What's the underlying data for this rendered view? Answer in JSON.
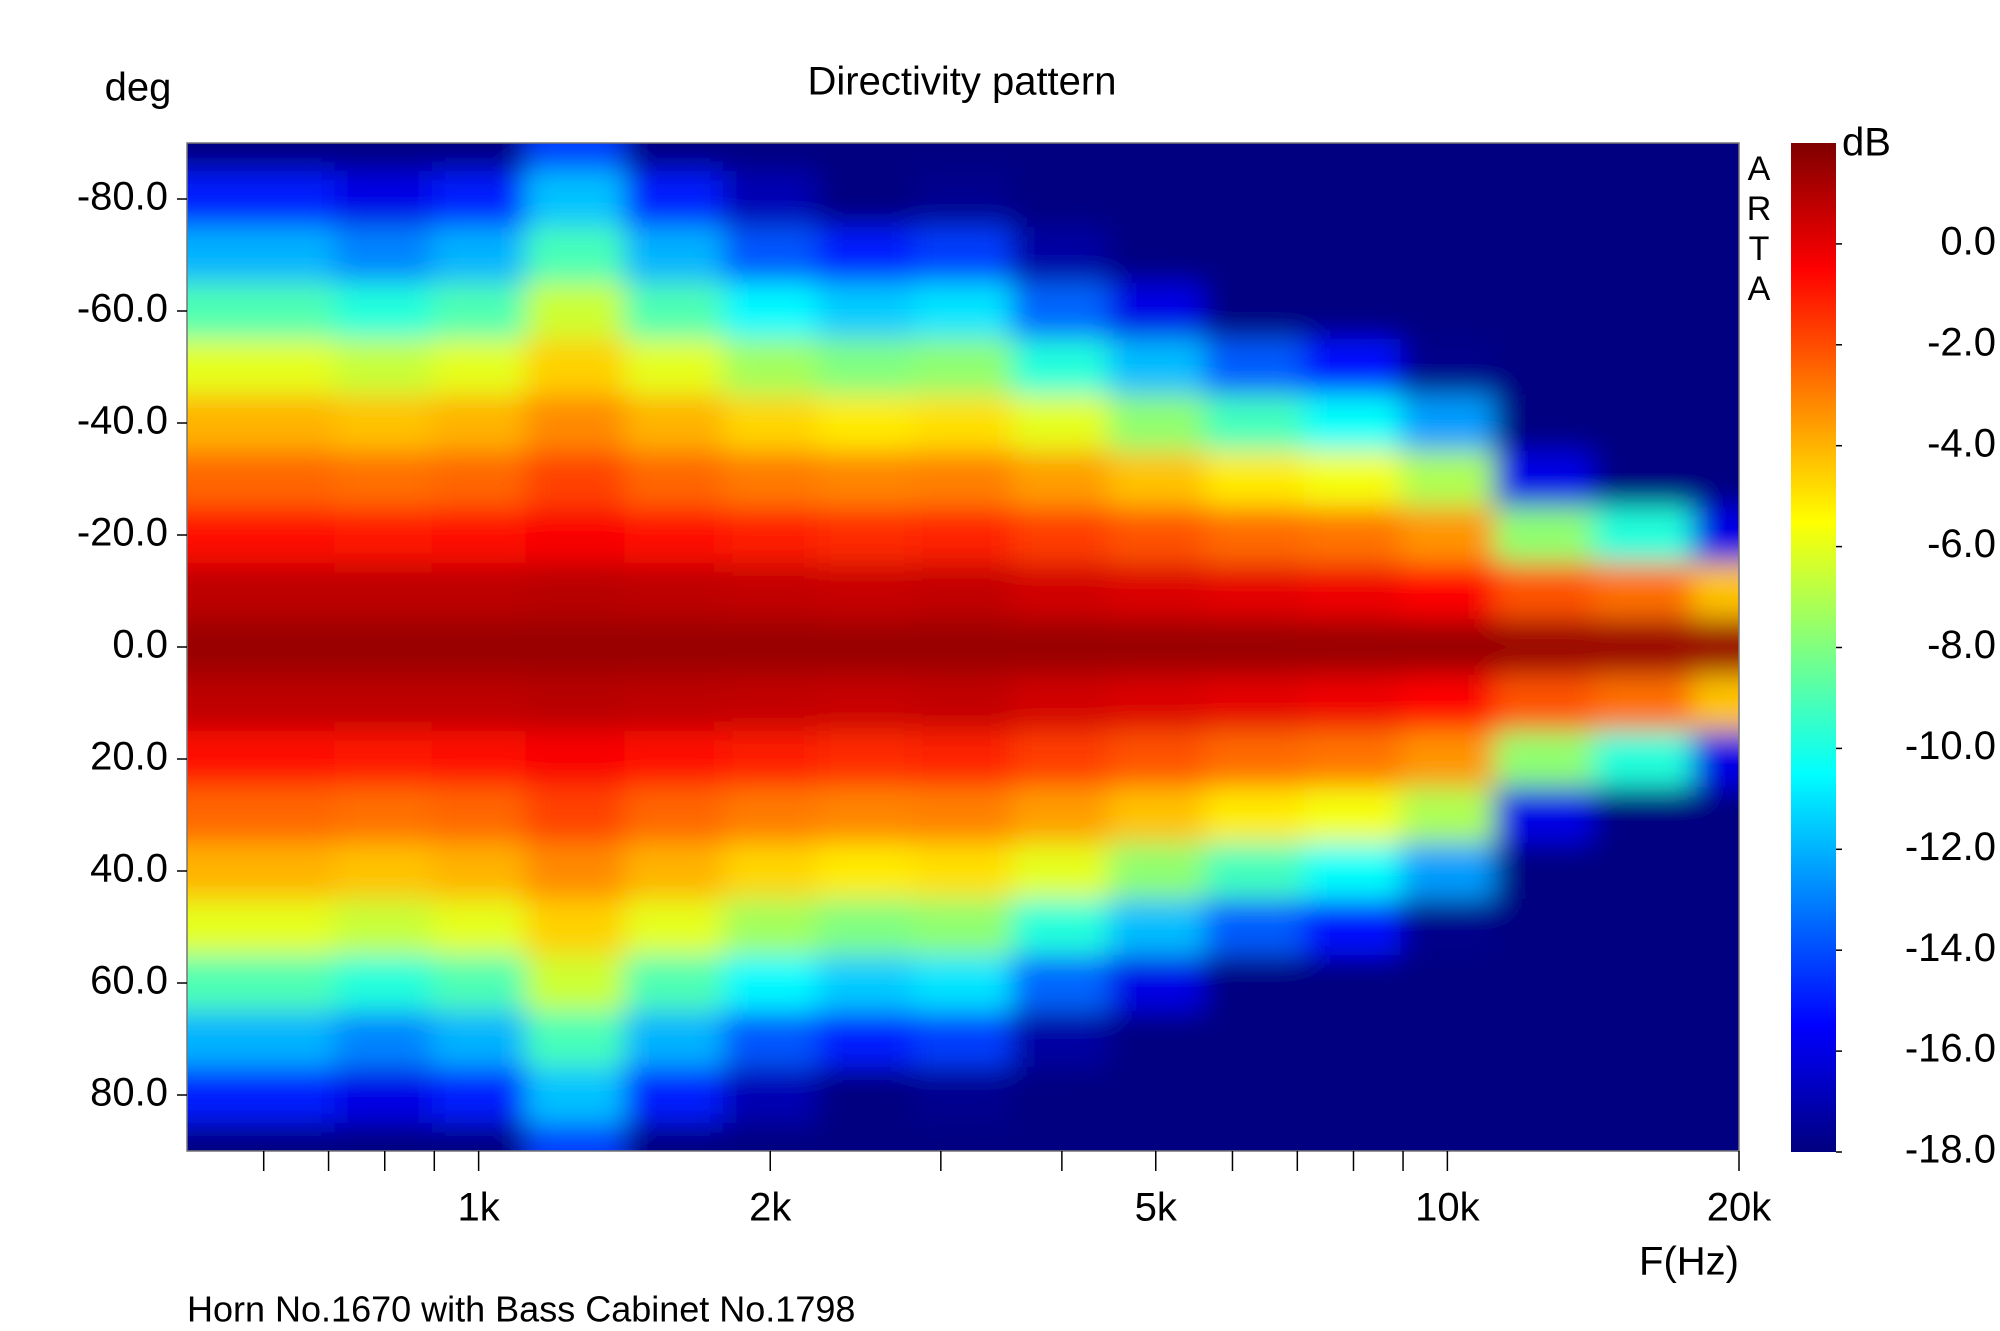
{
  "chart_data": {
    "type": "heatmap",
    "title": "Directivity pattern",
    "ylabel": "deg",
    "xlabel": "F(Hz)",
    "zlabel": "dB",
    "watermark": "ARTA",
    "footnote": "Horn No.1670 with Bass Cabinet No.1798",
    "xscale": "log",
    "colormap": "jet",
    "xlim": [
      500,
      20000
    ],
    "xticks": [
      {
        "value": 1000,
        "label": "1k"
      },
      {
        "value": 2000,
        "label": "2k"
      },
      {
        "value": 5000,
        "label": "5k"
      },
      {
        "value": 10000,
        "label": "10k"
      },
      {
        "value": 20000,
        "label": "20k"
      }
    ],
    "xminor_ticks": [
      600,
      700,
      800,
      900,
      3000,
      4000,
      6000,
      7000,
      8000,
      9000
    ],
    "ylim": [
      -90,
      90
    ],
    "yticks": [
      {
        "value": -80,
        "label": "-80.0"
      },
      {
        "value": -60,
        "label": "-60.0"
      },
      {
        "value": -40,
        "label": "-40.0"
      },
      {
        "value": -20,
        "label": "-20.0"
      },
      {
        "value": 0,
        "label": "0.0"
      },
      {
        "value": 20,
        "label": "20.0"
      },
      {
        "value": 40,
        "label": "40.0"
      },
      {
        "value": 60,
        "label": "60.0"
      },
      {
        "value": 80,
        "label": "80.0"
      }
    ],
    "zlim": [
      -18,
      2
    ],
    "zticks": [
      {
        "value": 0,
        "label": "0.0"
      },
      {
        "value": -2,
        "label": "-2.0"
      },
      {
        "value": -4,
        "label": "-4.0"
      },
      {
        "value": -6,
        "label": "-6.0"
      },
      {
        "value": -8,
        "label": "-8.0"
      },
      {
        "value": -10,
        "label": "-10.0"
      },
      {
        "value": -12,
        "label": "-12.0"
      },
      {
        "value": -14,
        "label": "-14.0"
      },
      {
        "value": -16,
        "label": "-16.0"
      },
      {
        "value": -18,
        "label": "-18.0"
      }
    ],
    "x": [
      500,
      630,
      800,
      1000,
      1250,
      1600,
      2000,
      2500,
      3150,
      4000,
      5000,
      6300,
      8000,
      10000,
      12500,
      16000,
      20000
    ],
    "y": [
      -90,
      -80,
      -70,
      -60,
      -50,
      -40,
      -30,
      -20,
      -10,
      0,
      10,
      20,
      30,
      40,
      50,
      60,
      70,
      80,
      90
    ],
    "z": [
      [
        -18,
        -15,
        -12,
        -9,
        -6,
        -4,
        -2.5,
        -0.8,
        0.8,
        1.5,
        0.8,
        -0.8,
        -2.5,
        -4,
        -6,
        -9,
        -12,
        -15,
        -18
      ],
      [
        -18,
        -15,
        -12,
        -9,
        -6,
        -4,
        -2.5,
        -0.8,
        0.8,
        1.5,
        0.8,
        -0.8,
        -2.5,
        -4,
        -6,
        -9,
        -12,
        -15,
        -18
      ],
      [
        -18,
        -16,
        -12.9,
        -9.8,
        -6.6,
        -4.3,
        -2.7,
        -0.9,
        0.8,
        1.5,
        0.8,
        -0.9,
        -2.7,
        -4.3,
        -6.6,
        -9.8,
        -12.9,
        -16,
        -18
      ],
      [
        -18,
        -15,
        -12,
        -9,
        -6,
        -4,
        -2.5,
        -0.8,
        0.8,
        1.5,
        0.8,
        -0.8,
        -2.5,
        -4,
        -6,
        -9,
        -12,
        -15,
        -18
      ],
      [
        -14.3,
        -11.7,
        -9.1,
        -6.5,
        -4.6,
        -3.2,
        -1.8,
        -0.4,
        0.9,
        1.5,
        0.9,
        -0.4,
        -1.8,
        -3.2,
        -4.6,
        -6.5,
        -9.1,
        -11.7,
        -14.3
      ],
      [
        -18,
        -15,
        -12,
        -9,
        -6,
        -4,
        -2.5,
        -0.8,
        0.8,
        1.5,
        0.8,
        -0.8,
        -2.5,
        -4,
        -6,
        -9,
        -12,
        -15,
        -18
      ],
      [
        -18,
        -17,
        -13.8,
        -10.6,
        -7.3,
        -4.7,
        -2.9,
        -1.1,
        0.7,
        1.5,
        0.7,
        -1.1,
        -2.9,
        -4.7,
        -7.3,
        -10.6,
        -13.8,
        -17,
        -18
      ],
      [
        -18,
        -18,
        -14.9,
        -11.5,
        -8,
        -5.1,
        -3.1,
        -1.3,
        0.6,
        1.5,
        0.6,
        -1.3,
        -3.1,
        -5.1,
        -8,
        -11.5,
        -14.9,
        -18,
        -18
      ],
      [
        -18,
        -17.7,
        -14.3,
        -11,
        -7.7,
        -4.9,
        -3,
        -1.2,
        0.7,
        1.5,
        0.7,
        -1.2,
        -3,
        -4.9,
        -7.7,
        -11,
        -14.3,
        -17.7,
        -18
      ],
      [
        -18,
        -18,
        -17.3,
        -13.5,
        -9.8,
        -6,
        -3.6,
        -1.7,
        0.4,
        1.5,
        0.4,
        -1.7,
        -3.6,
        -6,
        -9.8,
        -13.5,
        -17.3,
        -18,
        -18
      ],
      [
        -18,
        -18,
        -18,
        -16,
        -11.8,
        -7.7,
        -4.3,
        -2.1,
        0.2,
        1.5,
        0.2,
        -2.1,
        -4.3,
        -7.7,
        -11.8,
        -16,
        -18,
        -18,
        -18
      ],
      [
        -18,
        -18,
        -18,
        -18,
        -13.7,
        -9.2,
        -5.1,
        -2.6,
        0,
        1.5,
        0,
        -2.6,
        -5.1,
        -9.2,
        -13.7,
        -18,
        -18,
        -18,
        -18
      ],
      [
        -18,
        -18,
        -18,
        -18,
        -15.2,
        -10.4,
        -5.7,
        -2.8,
        -0.2,
        1.5,
        -0.2,
        -2.8,
        -5.7,
        -10.4,
        -15.2,
        -18,
        -18,
        -18,
        -18
      ],
      [
        -18,
        -18,
        -18,
        -18,
        -17.8,
        -12.4,
        -7.1,
        -3.4,
        -0.5,
        1.5,
        -0.5,
        -3.4,
        -7.1,
        -12.4,
        -17.8,
        -18,
        -18,
        -18,
        -18
      ],
      [
        -18,
        -18,
        -18,
        -18,
        -18,
        -18,
        -16,
        -7.7,
        -2.1,
        1.5,
        -2.1,
        -7.7,
        -16,
        -18,
        -18,
        -18,
        -18,
        -18,
        -18
      ],
      [
        -18,
        -18,
        -18,
        -18,
        -18,
        -18,
        -18,
        -9.8,
        -2.7,
        1.5,
        -2.7,
        -9.8,
        -18,
        -18,
        -18,
        -18,
        -18,
        -18,
        -18
      ],
      [
        -18,
        -18,
        -18,
        -18,
        -18,
        -18,
        -18,
        -16,
        -4.3,
        1.5,
        -4.3,
        -16,
        -18,
        -18,
        -18,
        -18,
        -18,
        -18,
        -18
      ]
    ]
  }
}
